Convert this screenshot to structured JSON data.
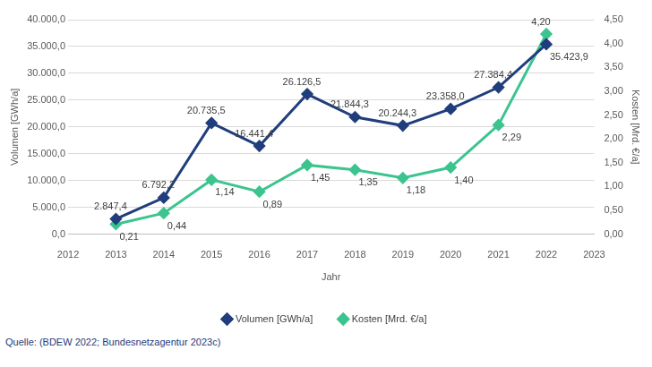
{
  "chart_data": {
    "type": "line",
    "x_label": "Jahr",
    "y_label": "Volumen [GWh/a]",
    "y2_label": "Kosten [Mrd. €/a]",
    "source": "Quelle: (BDEW 2022; Bundesnetzagentur 2023c)",
    "x": [
      2013,
      2014,
      2015,
      2016,
      2017,
      2018,
      2019,
      2020,
      2021,
      2022
    ],
    "xlim": [
      2012,
      2023
    ],
    "xticks": [
      2012,
      2013,
      2014,
      2015,
      2016,
      2017,
      2018,
      2019,
      2020,
      2021,
      2022,
      2023
    ],
    "ylim": [
      0,
      40000
    ],
    "yticks": [
      {
        "value": 0,
        "label": "0,0"
      },
      {
        "value": 5000,
        "label": "5.000,0"
      },
      {
        "value": 10000,
        "label": "10.000,0"
      },
      {
        "value": 15000,
        "label": "15.000,0"
      },
      {
        "value": 20000,
        "label": "20.000,0"
      },
      {
        "value": 25000,
        "label": "25.000,0"
      },
      {
        "value": 30000,
        "label": "30.000,0"
      },
      {
        "value": 35000,
        "label": "35.000,0"
      },
      {
        "value": 40000,
        "label": "40.000,0"
      }
    ],
    "y2lim": [
      0,
      4.5
    ],
    "y2ticks": [
      {
        "value": 0,
        "label": "0,00"
      },
      {
        "value": 0.5,
        "label": "0,50"
      },
      {
        "value": 1,
        "label": "1,00"
      },
      {
        "value": 1.5,
        "label": "1,50"
      },
      {
        "value": 2,
        "label": "2,00"
      },
      {
        "value": 2.5,
        "label": "2,50"
      },
      {
        "value": 3,
        "label": "3,00"
      },
      {
        "value": 3.5,
        "label": "3,50"
      },
      {
        "value": 4,
        "label": "4,00"
      },
      {
        "value": 4.5,
        "label": "4,50"
      }
    ],
    "grid": true,
    "legend": "bottom",
    "data_labels": true,
    "marker": "diamond",
    "series": [
      {
        "name": "Volumen [GWh/a]",
        "color": "#203d7c",
        "values": [
          2847.4,
          6792.2,
          20735.5,
          16441.4,
          26126.5,
          21844.3,
          20244.3,
          23358.0,
          27384.4,
          35423.9
        ],
        "value_labels": [
          "2.847,4",
          "6.792,2",
          "20.735,5",
          "16.441,4",
          "26.126,5",
          "21.844,3",
          "20.244,3",
          "23.358,0",
          "27.384,4",
          "35.423,9"
        ]
      },
      {
        "name": "Kosten [Mrd. €/a]",
        "color": "#3cc48f",
        "axis": "y2",
        "values": [
          0.21,
          0.44,
          1.14,
          0.89,
          1.45,
          1.35,
          1.18,
          1.4,
          2.29,
          4.2
        ],
        "value_labels": [
          "0,21",
          "0,44",
          "1,14",
          "0,89",
          "1,45",
          "1,35",
          "1,18",
          "1,40",
          "2,29",
          "4,20"
        ]
      }
    ]
  }
}
